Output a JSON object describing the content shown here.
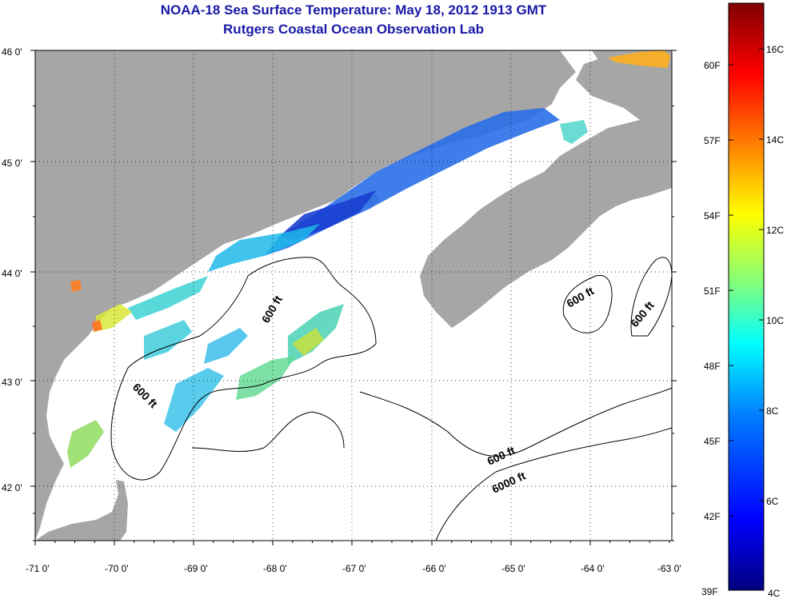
{
  "title_line1": "NOAA-18 Sea Surface Temperature:  May 18, 2012 1913 GMT",
  "title_line2": "Rutgers Coastal Ocean Observation Lab",
  "map": {
    "lon_labels": [
      "-71 0'",
      "-70 0'",
      "-69 0'",
      "-68 0'",
      "-67 0'",
      "-66 0'",
      "-65 0'",
      "-64 0'",
      "-63 0'"
    ],
    "lat_labels": [
      "46 0'",
      "45 0'",
      "44 0'",
      "43 0'",
      "42 0'"
    ],
    "grid": true,
    "colors": {
      "land": "#a6a6a6",
      "water": "#ffffff",
      "grid": "#000000"
    }
  },
  "contour_labels": [
    "600 ft",
    "600 ft",
    "600 ft",
    "600 ft",
    "600 ft",
    "6000 ft"
  ],
  "colorbar": {
    "fahrenheit_labels": [
      "60F",
      "57F",
      "54F",
      "51F",
      "48F",
      "45F",
      "42F",
      "39F"
    ],
    "celsius_labels": [
      "16C",
      "14C",
      "12C",
      "10C",
      "8C",
      "6C",
      "4C"
    ],
    "range_c": [
      4,
      17
    ],
    "colors": [
      "#00007f",
      "#0000ff",
      "#007fff",
      "#00ffff",
      "#7fff7f",
      "#ffff00",
      "#ff7f00",
      "#ff0000",
      "#7f0000"
    ]
  }
}
